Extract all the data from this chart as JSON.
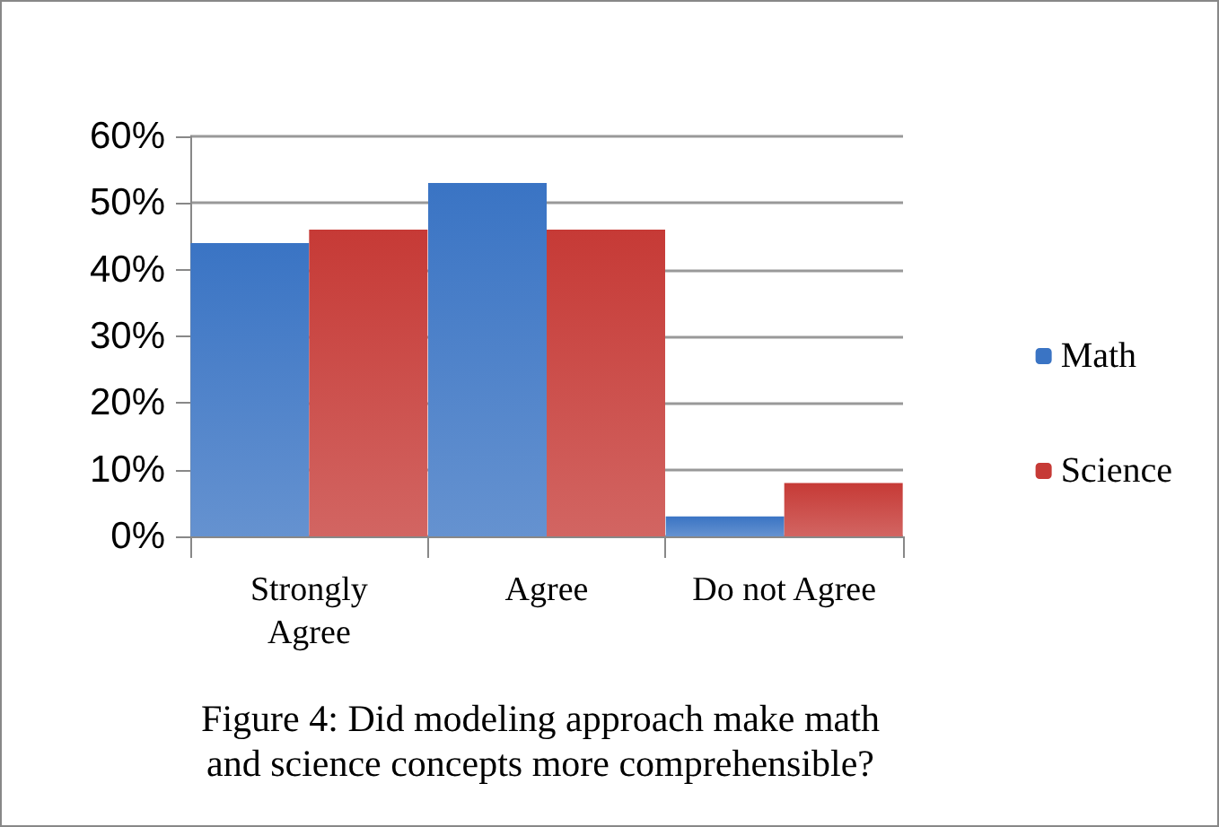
{
  "chart_data": {
    "type": "bar",
    "title": "Figure 4: Did modeling approach make math\nand science concepts more comprehensible?",
    "categories": [
      "Strongly\nAgree",
      "Agree",
      "Do not Agree"
    ],
    "series": [
      {
        "name": "Math",
        "color": "#3a74c4",
        "values": [
          44,
          53,
          3
        ]
      },
      {
        "name": "Science",
        "color": "#c63a36",
        "values": [
          46,
          46,
          8
        ]
      }
    ],
    "ylim": [
      0,
      60
    ],
    "yticks": [
      {
        "value": 0,
        "label": "0%"
      },
      {
        "value": 10,
        "label": "10%"
      },
      {
        "value": 20,
        "label": "20%"
      },
      {
        "value": 30,
        "label": "30%"
      },
      {
        "value": 40,
        "label": "40%"
      },
      {
        "value": 50,
        "label": "50%"
      },
      {
        "value": 60,
        "label": "60%"
      }
    ],
    "grid": "y",
    "legend": "right"
  }
}
